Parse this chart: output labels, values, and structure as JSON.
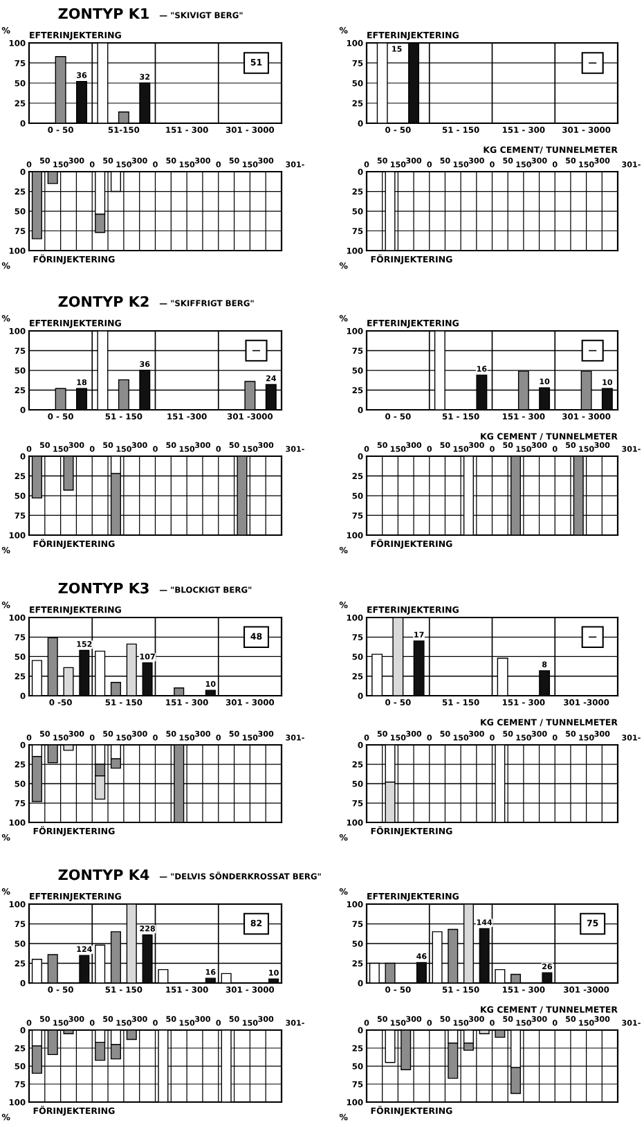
{
  "chart_data": [
    {
      "type": "bar",
      "title": "ZONTYP K1",
      "subtitle": "— \"SKIVIGT BERG\"",
      "ylabel": "%",
      "categories": [
        "0 - 50",
        "51-150",
        "151 - 300",
        "301 - 3000"
      ],
      "ylim": [
        0,
        100
      ],
      "yticks": [
        0,
        25,
        50,
        75,
        100
      ],
      "grid": true,
      "annotations": [
        "EFTERINJEKTERING",
        "51",
        "36",
        "32"
      ],
      "series": [
        {
          "color": "#ffffff",
          "values": [
            null,
            100,
            null,
            null
          ]
        },
        {
          "color": "#8c8c8c",
          "values": [
            83,
            14,
            null,
            null
          ]
        },
        {
          "color": "#111111",
          "values": [
            52,
            50,
            null,
            null
          ]
        }
      ]
    },
    {
      "type": "bar",
      "ylabel": "%",
      "xlabel": "KG CEMENT/ TUNNELMETER",
      "categories": [
        "0 - 50",
        "51 - 150",
        "151 - 300",
        "301 - 3000"
      ],
      "ylim": [
        0,
        100
      ],
      "yticks": [
        0,
        25,
        50,
        75,
        100
      ],
      "grid": true,
      "annotations": [
        "EFTERINJEKTERING",
        "—",
        "15"
      ],
      "series": [
        {
          "color": "#ffffff",
          "values": [
            100,
            null,
            null,
            null
          ]
        },
        {
          "color": "#111111",
          "values": [
            100,
            null,
            null,
            null
          ]
        }
      ]
    },
    {
      "type": "bar",
      "stacked": true,
      "title": "FÖRINJEKTERING",
      "ylabel": "%",
      "categories": [
        null,
        null,
        null,
        null,
        null,
        null,
        null,
        null,
        null,
        null,
        null,
        null,
        null,
        null,
        null,
        null
      ],
      "ylim": [
        100,
        0
      ],
      "yticks": [
        0,
        25,
        50,
        75,
        100
      ],
      "grid": true,
      "annotations": [
        "0",
        "50",
        "150",
        "300",
        "0",
        "50",
        "150",
        "300",
        "0",
        "50",
        "150",
        "300",
        "0",
        "50",
        "150",
        "300",
        "301-"
      ],
      "series": [
        {
          "color": "#ffffff",
          "values": [
            null,
            null,
            null,
            null,
            54,
            25,
            null,
            null,
            null,
            null,
            null,
            null,
            null,
            null,
            null,
            null
          ]
        },
        {
          "color": "#8c8c8c",
          "values": [
            85,
            15,
            null,
            null,
            23,
            null,
            null,
            null,
            null,
            null,
            null,
            null,
            null,
            null,
            null,
            null
          ]
        }
      ]
    },
    {
      "type": "bar",
      "stacked": true,
      "title": "FÖRINJEKTERING",
      "ylabel": "%",
      "categories": [
        null,
        null,
        null,
        null,
        null,
        null,
        null,
        null,
        null,
        null,
        null,
        null,
        null,
        null,
        null,
        null
      ],
      "ylim": [
        100,
        0
      ],
      "yticks": [
        0,
        25,
        50,
        75,
        100
      ],
      "grid": true,
      "annotations": [
        "0",
        "50",
        "150",
        "300",
        "0",
        "50",
        "150",
        "300",
        "0",
        "50",
        "150",
        "300",
        "0",
        "50",
        "150",
        "300",
        "301-"
      ],
      "series": [
        {
          "color": "#ffffff",
          "values": [
            null,
            100,
            null,
            null,
            null,
            null,
            null,
            null,
            null,
            null,
            null,
            null,
            null,
            null,
            null,
            null
          ]
        }
      ]
    },
    {
      "type": "bar",
      "title": "ZONTYP K2",
      "subtitle": "— \"SKIFFRIGT BERG\"",
      "ylabel": "%",
      "categories": [
        "0 - 50",
        "51 - 150",
        "151 -300",
        "301 -3000"
      ],
      "ylim": [
        0,
        100
      ],
      "yticks": [
        0,
        25,
        50,
        75,
        100
      ],
      "grid": true,
      "annotations": [
        "EFTERINJEKTERING",
        "—",
        "18",
        "36",
        "24"
      ],
      "series": [
        {
          "color": "#ffffff",
          "values": [
            null,
            100,
            null,
            null
          ]
        },
        {
          "color": "#8c8c8c",
          "values": [
            27,
            38,
            null,
            36
          ]
        },
        {
          "color": "#111111",
          "values": [
            27,
            50,
            null,
            32
          ]
        }
      ]
    },
    {
      "type": "bar",
      "ylabel": "%",
      "xlabel": "KG CEMENT / TUNNELMETER",
      "categories": [
        "0 - 50",
        "51 - 150",
        "151 - 300",
        "301 - 3000"
      ],
      "ylim": [
        0,
        100
      ],
      "yticks": [
        0,
        25,
        50,
        75,
        100
      ],
      "grid": true,
      "annotations": [
        "EFTERINJEKTERING",
        "—",
        "16",
        "10",
        "10"
      ],
      "series": [
        {
          "color": "#ffffff",
          "values": [
            null,
            100,
            null,
            null
          ]
        },
        {
          "color": "#8c8c8c",
          "values": [
            null,
            null,
            49,
            49
          ]
        },
        {
          "color": "#111111",
          "values": [
            null,
            44,
            28,
            27
          ]
        }
      ]
    },
    {
      "type": "bar",
      "stacked": true,
      "title": "FÖRINJEKTERING",
      "ylabel": "%",
      "categories": [
        null,
        null,
        null,
        null,
        null,
        null,
        null,
        null,
        null,
        null,
        null,
        null,
        null,
        null,
        null,
        null
      ],
      "ylim": [
        100,
        0
      ],
      "yticks": [
        0,
        25,
        50,
        75,
        100
      ],
      "grid": true,
      "annotations": [
        "0",
        "50",
        "150",
        "300",
        "0",
        "50",
        "150",
        "300",
        "0",
        "50",
        "150",
        "300",
        "0",
        "50",
        "150",
        "300",
        "301-"
      ],
      "series": [
        {
          "color": "#ffffff",
          "values": [
            null,
            null,
            null,
            null,
            null,
            22,
            null,
            null,
            null,
            null,
            null,
            null,
            null,
            null,
            null,
            null
          ]
        },
        {
          "color": "#8c8c8c",
          "values": [
            53,
            null,
            43,
            null,
            null,
            78,
            null,
            null,
            null,
            null,
            null,
            null,
            null,
            100,
            null,
            null
          ]
        }
      ]
    },
    {
      "type": "bar",
      "stacked": true,
      "title": "FÖRINJEKTERING",
      "ylabel": "%",
      "categories": [
        null,
        null,
        null,
        null,
        null,
        null,
        null,
        null,
        null,
        null,
        null,
        null,
        null,
        null,
        null,
        null
      ],
      "ylim": [
        100,
        0
      ],
      "yticks": [
        0,
        25,
        50,
        75,
        100
      ],
      "grid": true,
      "annotations": [
        "0",
        "50",
        "150",
        "300",
        "0",
        "50",
        "150",
        "300",
        "0",
        "50",
        "150",
        "300",
        "0",
        "50",
        "150",
        "300",
        "301-"
      ],
      "series": [
        {
          "color": "#ffffff",
          "values": [
            null,
            null,
            null,
            null,
            null,
            null,
            100,
            null,
            null,
            null,
            null,
            null,
            null,
            null,
            null,
            null
          ]
        },
        {
          "color": "#8c8c8c",
          "values": [
            null,
            null,
            null,
            null,
            null,
            null,
            null,
            null,
            null,
            100,
            null,
            null,
            null,
            100,
            null,
            null
          ]
        }
      ]
    },
    {
      "type": "bar",
      "title": "ZONTYP K3",
      "subtitle": "— \"BLOCKIGT BERG\"",
      "ylabel": "%",
      "categories": [
        "0 -50",
        "51 - 150",
        "151 - 300",
        "301 - 3000"
      ],
      "ylim": [
        0,
        100
      ],
      "yticks": [
        0,
        25,
        50,
        75,
        100
      ],
      "grid": true,
      "annotations": [
        "EFTERINJEKTERING",
        "48",
        "152",
        "107",
        "10"
      ],
      "series": [
        {
          "color": "#ffffff",
          "values": [
            45,
            57,
            null,
            null
          ]
        },
        {
          "color": "#8c8c8c",
          "values": [
            74,
            17,
            10,
            null
          ]
        },
        {
          "color": "#d9d9d9",
          "values": [
            36,
            66,
            null,
            null
          ]
        },
        {
          "color": "#111111",
          "values": [
            58,
            42,
            7,
            null
          ]
        }
      ]
    },
    {
      "type": "bar",
      "ylabel": "%",
      "xlabel": "KG CEMENT / TUNNELMETER",
      "categories": [
        "0 - 50",
        "51 - 150",
        "151 - 300",
        "301 -3000"
      ],
      "ylim": [
        0,
        100
      ],
      "yticks": [
        0,
        25,
        50,
        75,
        100
      ],
      "grid": true,
      "annotations": [
        "EFTERINJEKTERING",
        "—",
        "17",
        "8"
      ],
      "series": [
        {
          "color": "#ffffff",
          "values": [
            53,
            null,
            48,
            null
          ]
        },
        {
          "color": "#d9d9d9",
          "values": [
            100,
            null,
            null,
            null
          ]
        },
        {
          "color": "#111111",
          "values": [
            70,
            null,
            32,
            null
          ]
        }
      ]
    },
    {
      "type": "bar",
      "stacked": true,
      "title": "FÖRINJEKTERING",
      "ylabel": "%",
      "categories": [
        null,
        null,
        null,
        null,
        null,
        null,
        null,
        null,
        null,
        null,
        null,
        null,
        null,
        null,
        null,
        null
      ],
      "ylim": [
        100,
        0
      ],
      "yticks": [
        0,
        25,
        50,
        75,
        100
      ],
      "grid": true,
      "annotations": [
        "0",
        "50",
        "150",
        "300",
        "0",
        "50",
        "150",
        "300",
        "0",
        "50",
        "150",
        "300",
        "0",
        "50",
        "150",
        "300",
        "301-"
      ],
      "series": [
        {
          "color": "#ffffff",
          "values": [
            15,
            null,
            null,
            null,
            25,
            18,
            null,
            null,
            null,
            null,
            null,
            null,
            null,
            null,
            null,
            null
          ]
        },
        {
          "color": "#8c8c8c",
          "values": [
            58,
            23,
            null,
            null,
            15,
            12,
            null,
            null,
            null,
            100,
            null,
            null,
            null,
            null,
            null,
            null
          ]
        },
        {
          "color": "#d9d9d9",
          "values": [
            null,
            null,
            7,
            null,
            30,
            null,
            null,
            null,
            null,
            null,
            null,
            null,
            null,
            null,
            null,
            null
          ]
        }
      ]
    },
    {
      "type": "bar",
      "stacked": true,
      "title": "FÖRINJEKTERING",
      "ylabel": "%",
      "categories": [
        null,
        null,
        null,
        null,
        null,
        null,
        null,
        null,
        null,
        null,
        null,
        null,
        null,
        null,
        null,
        null
      ],
      "ylim": [
        100,
        0
      ],
      "yticks": [
        0,
        25,
        50,
        75,
        100
      ],
      "grid": true,
      "annotations": [
        "0",
        "50",
        "150",
        "300",
        "0",
        "50",
        "150",
        "300",
        "0",
        "50",
        "150",
        "300",
        "0",
        "50",
        "150",
        "300",
        "301-"
      ],
      "series": [
        {
          "color": "#ffffff",
          "values": [
            null,
            48,
            null,
            null,
            null,
            null,
            null,
            null,
            100,
            null,
            null,
            null,
            null,
            null,
            null,
            null
          ]
        },
        {
          "color": "#d9d9d9",
          "values": [
            null,
            52,
            null,
            null,
            null,
            null,
            null,
            null,
            null,
            null,
            null,
            null,
            null,
            null,
            null,
            null
          ]
        }
      ]
    },
    {
      "type": "bar",
      "title": "ZONTYP K4",
      "subtitle": "— \"DELVIS SÖNDERKROSSAT BERG\"",
      "ylabel": "%",
      "categories": [
        "0 - 50",
        "51 - 150",
        "151 - 300",
        "301 - 3000"
      ],
      "ylim": [
        0,
        100
      ],
      "yticks": [
        0,
        25,
        50,
        75,
        100
      ],
      "grid": true,
      "annotations": [
        "EFTERINJEKTERING",
        "82",
        "124",
        "228",
        "16",
        "10"
      ],
      "series": [
        {
          "color": "#ffffff",
          "values": [
            30,
            48,
            17,
            12
          ]
        },
        {
          "color": "#8c8c8c",
          "values": [
            36,
            65,
            null,
            null
          ]
        },
        {
          "color": "#d9d9d9",
          "values": [
            null,
            100,
            null,
            null
          ]
        },
        {
          "color": "#111111",
          "values": [
            35,
            61,
            6,
            5
          ]
        }
      ]
    },
    {
      "type": "bar",
      "ylabel": "%",
      "xlabel": "KG CEMENT / TUNNELMETER",
      "categories": [
        "0 - 50",
        "51 - 150",
        "151 - 300",
        "301 -3000"
      ],
      "ylim": [
        0,
        100
      ],
      "yticks": [
        0,
        25,
        50,
        75,
        100
      ],
      "grid": true,
      "annotations": [
        "EFTERINJEKTERING",
        "75",
        "46",
        "144",
        "26"
      ],
      "series": [
        {
          "color": "#ffffff",
          "values": [
            25,
            65,
            17,
            null
          ]
        },
        {
          "color": "#8c8c8c",
          "values": [
            25,
            68,
            11,
            null
          ]
        },
        {
          "color": "#d9d9d9",
          "values": [
            null,
            100,
            null,
            null
          ]
        },
        {
          "color": "#111111",
          "values": [
            26,
            69,
            13,
            null
          ]
        }
      ]
    },
    {
      "type": "bar",
      "stacked": true,
      "title": "FÖRINJEKTERING",
      "ylabel": "%",
      "categories": [
        null,
        null,
        null,
        null,
        null,
        null,
        null,
        null,
        null,
        null,
        null,
        null,
        null,
        null,
        null,
        null
      ],
      "ylim": [
        100,
        0
      ],
      "yticks": [
        0,
        25,
        50,
        75,
        100
      ],
      "grid": true,
      "annotations": [
        "0",
        "50",
        "150",
        "300",
        "0",
        "50",
        "150",
        "300",
        "0",
        "50",
        "150",
        "300",
        "0",
        "50",
        "150",
        "300",
        "301-"
      ],
      "series": [
        {
          "color": "#ffffff",
          "values": [
            22,
            null,
            null,
            null,
            17,
            20,
            null,
            null,
            100,
            null,
            null,
            null,
            100,
            null,
            null,
            null
          ]
        },
        {
          "color": "#8c8c8c",
          "values": [
            38,
            34,
            5,
            null,
            25,
            20,
            13,
            null,
            null,
            null,
            null,
            null,
            null,
            null,
            null,
            null
          ]
        }
      ]
    },
    {
      "type": "bar",
      "stacked": true,
      "title": "FÖRINJEKTERING",
      "ylabel": "%",
      "categories": [
        null,
        null,
        null,
        null,
        null,
        null,
        null,
        null,
        null,
        null,
        null,
        null,
        null,
        null,
        null,
        null
      ],
      "ylim": [
        100,
        0
      ],
      "yticks": [
        0,
        25,
        50,
        75,
        100
      ],
      "grid": true,
      "annotations": [
        "0",
        "50",
        "150",
        "300",
        "0",
        "50",
        "150",
        "300",
        "0",
        "50",
        "150",
        "300",
        "0",
        "50",
        "150",
        "300",
        "301-"
      ],
      "series": [
        {
          "color": "#ffffff",
          "values": [
            null,
            45,
            null,
            null,
            null,
            18,
            18,
            null,
            null,
            52,
            null,
            null,
            null,
            null,
            null,
            null
          ]
        },
        {
          "color": "#8c8c8c",
          "values": [
            null,
            null,
            55,
            null,
            null,
            49,
            10,
            null,
            10,
            36,
            null,
            null,
            null,
            null,
            null,
            null
          ]
        },
        {
          "color": "#d9d9d9",
          "values": [
            null,
            null,
            null,
            null,
            null,
            null,
            null,
            5,
            null,
            null,
            null,
            null,
            null,
            null,
            null,
            null
          ]
        }
      ]
    }
  ]
}
